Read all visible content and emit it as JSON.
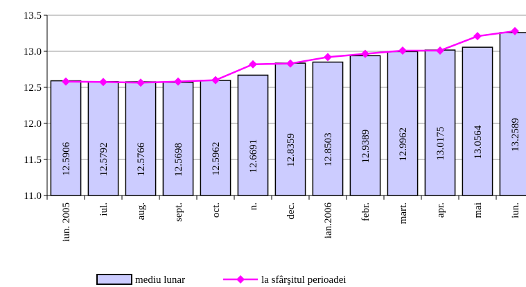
{
  "chart_data": {
    "type": "bar",
    "categories": [
      "iun. 2005",
      "iul.",
      "aug.",
      "sept.",
      "oct.",
      "n.",
      "dec.",
      "ian.2006",
      "febr.",
      "mart.",
      "apr.",
      "mai",
      "iun."
    ],
    "series": [
      {
        "name": "mediu lunar",
        "type": "bar",
        "color": "#ccccff",
        "values": [
          12.5906,
          12.5792,
          12.5766,
          12.5698,
          12.5962,
          12.6691,
          12.8359,
          12.8503,
          12.9389,
          12.9962,
          13.0175,
          13.0564,
          13.2589
        ]
      },
      {
        "name": "la sfârşitul perioadei",
        "type": "line",
        "color": "#ff00ff",
        "values": [
          12.58,
          12.575,
          12.565,
          12.58,
          12.6,
          12.82,
          12.83,
          12.92,
          12.965,
          13.01,
          13.01,
          13.21,
          13.28
        ]
      }
    ],
    "ylim": [
      11,
      13.5
    ],
    "yticks": [
      {
        "value": 11,
        "label": "11.0"
      },
      11.5,
      {
        "value": 12,
        "label": "12.0"
      },
      12.5,
      {
        "value": 13,
        "label": "13.0"
      },
      13.5
    ],
    "grid": true,
    "legend": "bottom"
  }
}
